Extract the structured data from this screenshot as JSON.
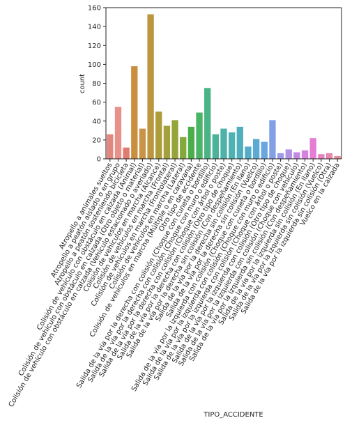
{
  "chart_data": {
    "type": "bar",
    "x_label": "TIPO_ACCIDENTE",
    "y_label": "count",
    "categories": [
      "Atropello a animales sueltos",
      "Atropello a peatón aislado o en grupo",
      "Atropello a peatón sosteniendo bicicleta",
      "Colisión de vehículo con obstáculo en calzada (Animal)",
      "Colisión de vehículo con obstáculo en calzada (Otro objeto o material)",
      "Colisión de vehículo con obstáculo en calzada (Vehículo estacionado o averiado)",
      "Colisión de vehículos en marcha (Alcance)",
      "Colisión de vehículos en marcha (Frontal)",
      "Colisión de vehículos en marcha (Frontolateral)",
      "Colisión de vehículos en marcha (Lateral)",
      "Colisión de vehículos en marcha (Múltiple o en caravana)",
      "Otro tipo de accidente",
      "Salida de la vía por la derecha con colisión (Choque con cuneta o bordillo)",
      "Salida de la vía por la derecha con colisión (Choque con muro o edificio)",
      "Salida de la vía por la derecha con colisión (Choque con árbol o poste)",
      "Salida de la vía por la derecha con colisión (Otro tipo de choque)",
      "Salida de la vía por la derecha sin colisión (Con despeñamiento)",
      "Salida de la vía por la derecha sin colisión (En llano)",
      "Salida de la vía por la derecha sin colisión (Vuelco)",
      "Salida de la vía por la izquierda con colisión (Choque con cuneta o bordillo)",
      "Salida de la vía por la izquierda con colisión (Choque con muro o edificio)",
      "Salida de la vía por la izquierda con colisión (Choque con árbol o poste)",
      "Salida de la vía por la izquierda con colisión (Otro tipo de choque)",
      "Salida de la vía por la izquierda con colisión (Choque con vehículo)",
      "Salida de la vía por la izquierda sin colisión (Con despeñamiento)",
      "Salida de la vía por la izquierda sin colisión (En llano)",
      "Salida de la vía por la izquierda sin colisión (Vuelco)",
      "Salida de la vía por la izquierda sin colisión (Otra)",
      "Vuelco en la calzada"
    ],
    "values": [
      26,
      55,
      12,
      98,
      32,
      153,
      50,
      35,
      41,
      23,
      34,
      49,
      75,
      26,
      32,
      28,
      34,
      13,
      21,
      18,
      41,
      6,
      10,
      7,
      9,
      22,
      5,
      6,
      3
    ],
    "colors": [
      "#e2877f",
      "#e8918a",
      "#e07b70",
      "#c98e3e",
      "#c99348",
      "#bb963f",
      "#ad9c3a",
      "#a3a13a",
      "#95a53a",
      "#84a93b",
      "#4cae4b",
      "#4ab466",
      "#4bb487",
      "#4cb39b",
      "#4db2a8",
      "#4eb1b3",
      "#50afbd",
      "#54adc8",
      "#5aaad4",
      "#6aa6e0",
      "#83a0e6",
      "#9b9be8",
      "#b193e6",
      "#c38ae4",
      "#d383de",
      "#e47dd3",
      "#e782c2",
      "#e886ad",
      "#e88b9a"
    ],
    "ylim": [
      0,
      160
    ],
    "yticks": [
      0,
      20,
      40,
      60,
      80,
      100,
      120,
      140,
      160
    ]
  }
}
